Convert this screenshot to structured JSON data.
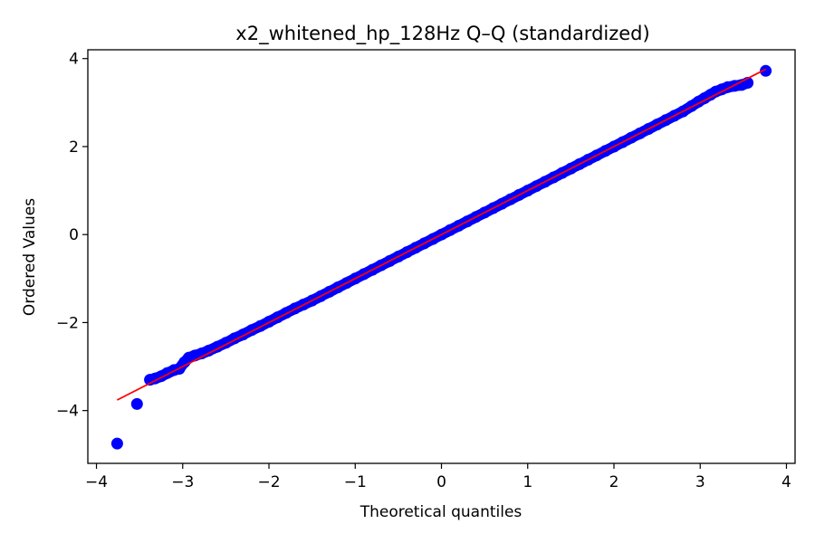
{
  "chart_data": {
    "type": "scatter",
    "title": "x2_whitened_hp_128Hz Q–Q (standardized)",
    "xlabel": "Theoretical quantiles",
    "ylabel": "Ordered Values",
    "xlim": [
      -4.1,
      4.1
    ],
    "ylim": [
      -5.2,
      4.2
    ],
    "xticks": [
      -4,
      -3,
      -2,
      -1,
      0,
      1,
      2,
      3,
      4
    ],
    "yticks": [
      -4,
      -2,
      0,
      2,
      4
    ],
    "xtick_labels": [
      "−4",
      "−3",
      "−2",
      "−1",
      "0",
      "1",
      "2",
      "3",
      "4"
    ],
    "ytick_labels": [
      "−4",
      "−2",
      "0",
      "2",
      "4"
    ],
    "grid": false,
    "series": [
      {
        "kind": "points",
        "color": "#0000ff",
        "x": [
          -3.76,
          -3.53,
          -3.38,
          -3.32,
          -3.25,
          -3.18,
          -3.1,
          -3.04,
          -2.98,
          -2.93,
          -2.86,
          -2.78,
          -2.7,
          -2.6,
          -2.5,
          -2.4,
          -2.3,
          -2.2,
          -2.1,
          -2.0,
          -1.9,
          -1.8,
          -1.7,
          -1.6,
          -1.5,
          -1.4,
          -1.3,
          -1.2,
          -1.1,
          -1.0,
          -0.9,
          -0.8,
          -0.7,
          -0.6,
          -0.5,
          -0.4,
          -0.3,
          -0.2,
          -0.1,
          0.0,
          0.1,
          0.2,
          0.3,
          0.4,
          0.5,
          0.6,
          0.7,
          0.8,
          0.9,
          1.0,
          1.1,
          1.2,
          1.3,
          1.4,
          1.5,
          1.6,
          1.7,
          1.8,
          1.9,
          2.0,
          2.1,
          2.2,
          2.3,
          2.4,
          2.5,
          2.6,
          2.7,
          2.8,
          2.9,
          2.98,
          3.05,
          3.12,
          3.18,
          3.25,
          3.32,
          3.4,
          3.48,
          3.55,
          3.76
        ],
        "y": [
          -4.75,
          -3.85,
          -3.3,
          -3.27,
          -3.22,
          -3.15,
          -3.08,
          -3.05,
          -2.9,
          -2.8,
          -2.75,
          -2.7,
          -2.64,
          -2.55,
          -2.46,
          -2.36,
          -2.27,
          -2.17,
          -2.08,
          -1.98,
          -1.88,
          -1.78,
          -1.68,
          -1.59,
          -1.5,
          -1.4,
          -1.3,
          -1.2,
          -1.1,
          -1.0,
          -0.9,
          -0.8,
          -0.7,
          -0.6,
          -0.5,
          -0.4,
          -0.3,
          -0.2,
          -0.1,
          0.0,
          0.1,
          0.2,
          0.3,
          0.4,
          0.5,
          0.6,
          0.7,
          0.8,
          0.9,
          1.0,
          1.1,
          1.2,
          1.3,
          1.4,
          1.5,
          1.6,
          1.7,
          1.8,
          1.9,
          2.0,
          2.1,
          2.2,
          2.3,
          2.4,
          2.5,
          2.6,
          2.7,
          2.8,
          2.92,
          3.02,
          3.1,
          3.18,
          3.25,
          3.3,
          3.35,
          3.38,
          3.4,
          3.45,
          3.72
        ]
      },
      {
        "kind": "fit-line",
        "color": "#ff0000",
        "x": [
          -3.76,
          3.76
        ],
        "y": [
          -3.76,
          3.76
        ]
      }
    ]
  }
}
